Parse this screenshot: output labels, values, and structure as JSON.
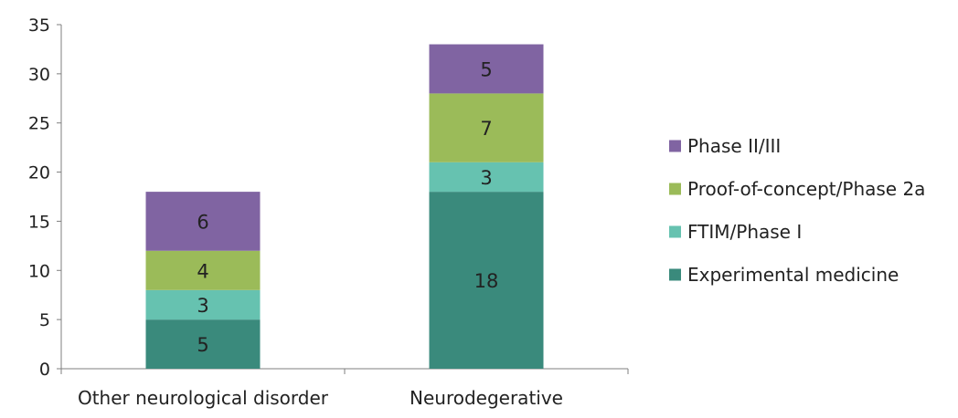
{
  "chart_data": {
    "type": "bar",
    "stacked": true,
    "categories": [
      "Other neurological disorder",
      "Neurodegerative"
    ],
    "series": [
      {
        "name": "Experimental medicine",
        "values": [
          5,
          18
        ],
        "color": "#3a8a7c"
      },
      {
        "name": "FTIM/Phase I",
        "values": [
          3,
          3
        ],
        "color": "#66c2b0"
      },
      {
        "name": "Proof-of-concept/Phase 2a",
        "values": [
          4,
          7
        ],
        "color": "#9bbb59"
      },
      {
        "name": "Phase II/III",
        "values": [
          6,
          5
        ],
        "color": "#8064a2"
      }
    ],
    "title": "",
    "xlabel": "",
    "ylabel": "",
    "ylim": [
      0,
      35
    ],
    "yticks": [
      0,
      5,
      10,
      15,
      20,
      25,
      30,
      35
    ],
    "grid": false,
    "legend_position": "right",
    "legend_order": [
      "Phase II/III",
      "Proof-of-concept/Phase 2a",
      "FTIM/Phase I",
      "Experimental medicine"
    ],
    "axis_color": "#7f7f7f"
  }
}
